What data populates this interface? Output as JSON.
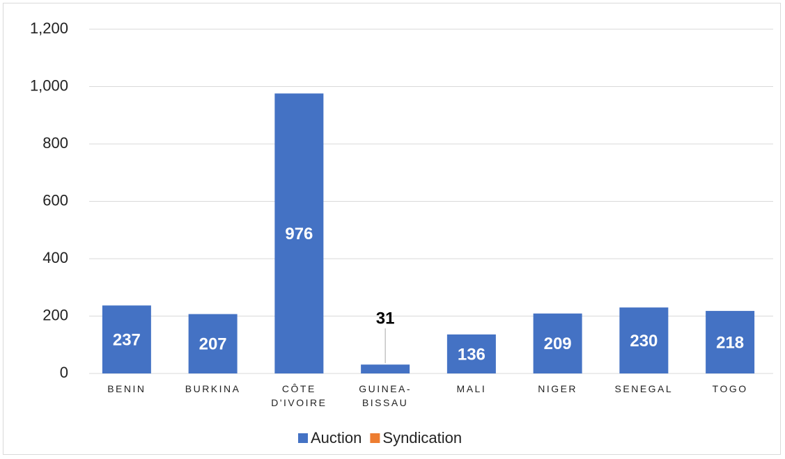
{
  "chart_data": {
    "type": "bar",
    "categories": [
      "BENIN",
      "BURKINA",
      "CÔTE D'IVOIRE",
      "GUINEA-BISSAU",
      "MALI",
      "NIGER",
      "SENEGAL",
      "TOGO"
    ],
    "series": [
      {
        "name": "Auction",
        "color": "#4472c4",
        "values": [
          237,
          207,
          976,
          31,
          136,
          209,
          230,
          218
        ]
      },
      {
        "name": "Syndication",
        "color": "#ed7d31",
        "values": [
          0,
          0,
          0,
          0,
          0,
          0,
          0,
          0
        ]
      }
    ],
    "ylim": [
      0,
      1200
    ],
    "yticks": [
      0,
      200,
      400,
      600,
      800,
      {
        "value": 1000,
        "label": "1,000"
      },
      {
        "value": 1200,
        "label": "1,200"
      }
    ],
    "grid": true,
    "legend": "bottom"
  }
}
